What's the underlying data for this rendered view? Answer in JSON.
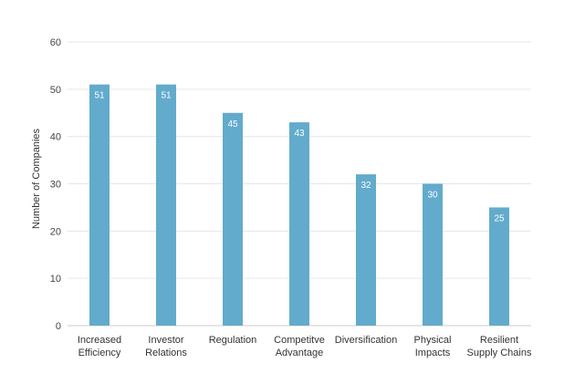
{
  "chart_data": {
    "type": "bar",
    "title": "",
    "xlabel": "",
    "ylabel": "Number of Companies",
    "ylim": [
      0,
      60
    ],
    "yticks": [
      0,
      10,
      20,
      30,
      40,
      50,
      60
    ],
    "grid": true,
    "categories": [
      [
        "Increased",
        "Efficiency"
      ],
      [
        "Investor",
        "Relations"
      ],
      [
        "Regulation"
      ],
      [
        "Competitve",
        "Advantage"
      ],
      [
        "Diversification"
      ],
      [
        "Physical",
        "Impacts"
      ],
      [
        "Resilient",
        "Supply Chains"
      ]
    ],
    "values": [
      51,
      51,
      45,
      43,
      32,
      30,
      25
    ],
    "bar_color": "#62abcc",
    "gridline_color": "#e6e6e6",
    "data_labels": true
  }
}
